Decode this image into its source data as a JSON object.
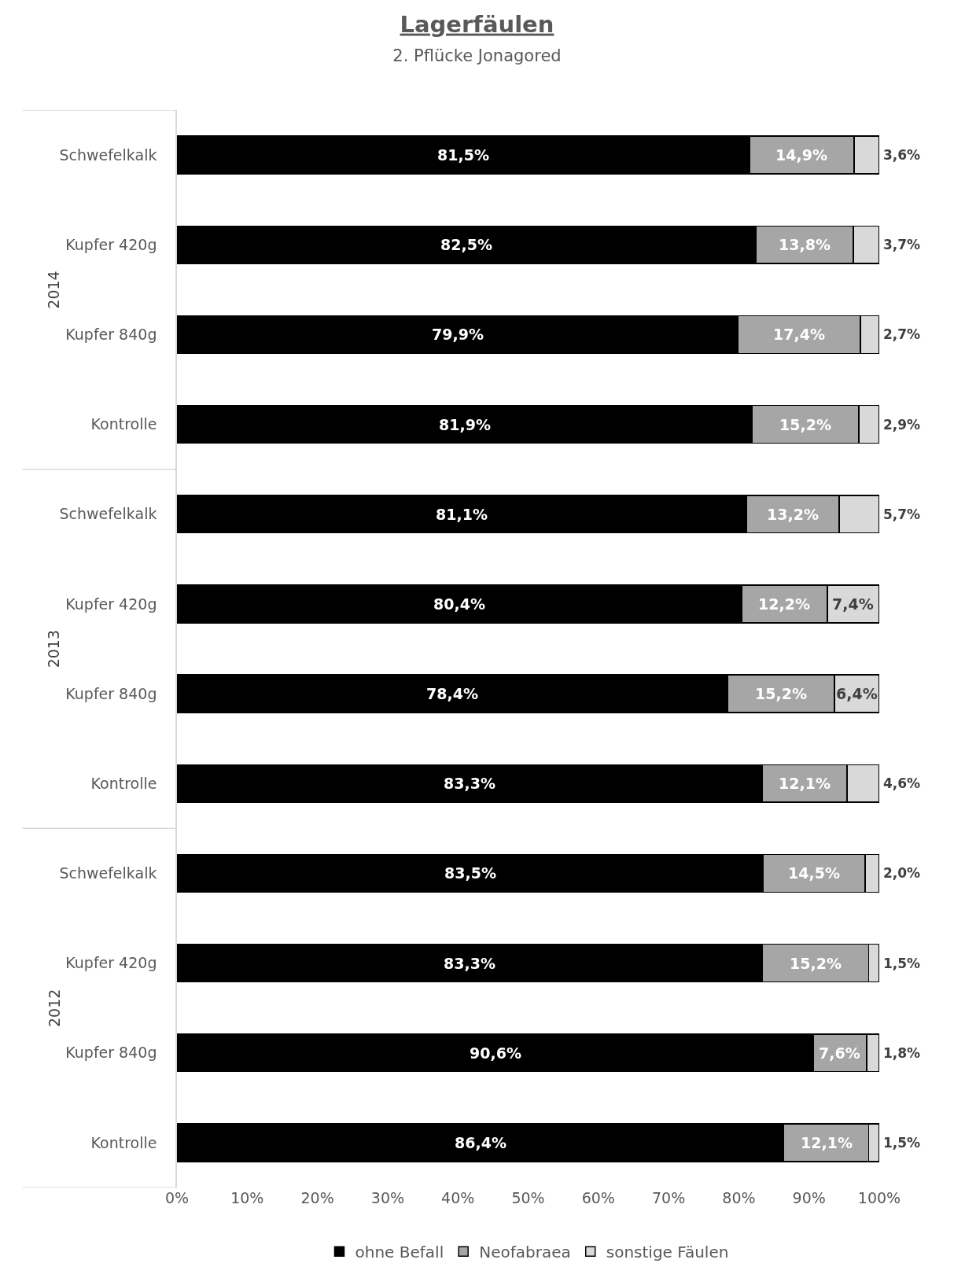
{
  "chart_data": {
    "type": "bar",
    "orientation": "horizontal",
    "stacked": true,
    "title": "Lagerfäulen",
    "subtitle": "2. Pflücke Jonagored",
    "categories": [
      "Schwefelkalk",
      "Kupfer 420g",
      "Kupfer 840g",
      "Kontrolle",
      "Schwefelkalk",
      "Kupfer 420g",
      "Kupfer 840g",
      "Kontrolle",
      "Schwefelkalk",
      "Kupfer 420g",
      "Kupfer 840g",
      "Kontrolle"
    ],
    "annotations": [
      "2014",
      "2013",
      "2012"
    ],
    "series": [
      {
        "name": "ohne Befall",
        "color": "#000000",
        "values": [
          81.5,
          82.5,
          79.9,
          81.9,
          81.1,
          80.4,
          78.4,
          83.3,
          83.5,
          83.3,
          90.6,
          86.4
        ],
        "value_labels": [
          "81,5%",
          "82,5%",
          "79,9%",
          "81,9%",
          "81,1%",
          "80,4%",
          "78,4%",
          "83,3%",
          "83,5%",
          "83,3%",
          "90,6%",
          "86,4%"
        ]
      },
      {
        "name": "Neofabraea",
        "color": "#a6a6a6",
        "values": [
          14.9,
          13.8,
          17.4,
          15.2,
          13.2,
          12.2,
          15.2,
          12.1,
          14.5,
          15.2,
          7.6,
          12.1
        ],
        "value_labels": [
          "14,9%",
          "13,8%",
          "17,4%",
          "15,2%",
          "13,2%",
          "12,2%",
          "15,2%",
          "12,1%",
          "14,5%",
          "15,2%",
          "7,6%",
          "12,1%"
        ]
      },
      {
        "name": "sonstige Fäulen",
        "color": "#d9d9d9",
        "values": [
          3.6,
          3.7,
          2.7,
          2.9,
          5.7,
          7.4,
          6.4,
          4.6,
          2.0,
          1.5,
          1.8,
          1.5
        ],
        "value_labels": [
          "3,6%",
          "3,7%",
          "2,7%",
          "2,9%",
          "5,7%",
          "7,4%",
          "6,4%",
          "4,6%",
          "2,0%",
          "1,5%",
          "1,8%",
          "1,5%"
        ]
      }
    ],
    "xlim": [
      0,
      100
    ],
    "xticks": [
      {
        "value": 0,
        "label": "0%"
      },
      {
        "value": 10,
        "label": "10%"
      },
      {
        "value": 20,
        "label": "20%"
      },
      {
        "value": 30,
        "label": "30%"
      },
      {
        "value": 40,
        "label": "40%"
      },
      {
        "value": 50,
        "label": "50%"
      },
      {
        "value": 60,
        "label": "60%"
      },
      {
        "value": 70,
        "label": "70%"
      },
      {
        "value": 80,
        "label": "80%"
      },
      {
        "value": 90,
        "label": "90%"
      },
      {
        "value": 100,
        "label": "100%"
      }
    ],
    "legend": "bottom"
  }
}
